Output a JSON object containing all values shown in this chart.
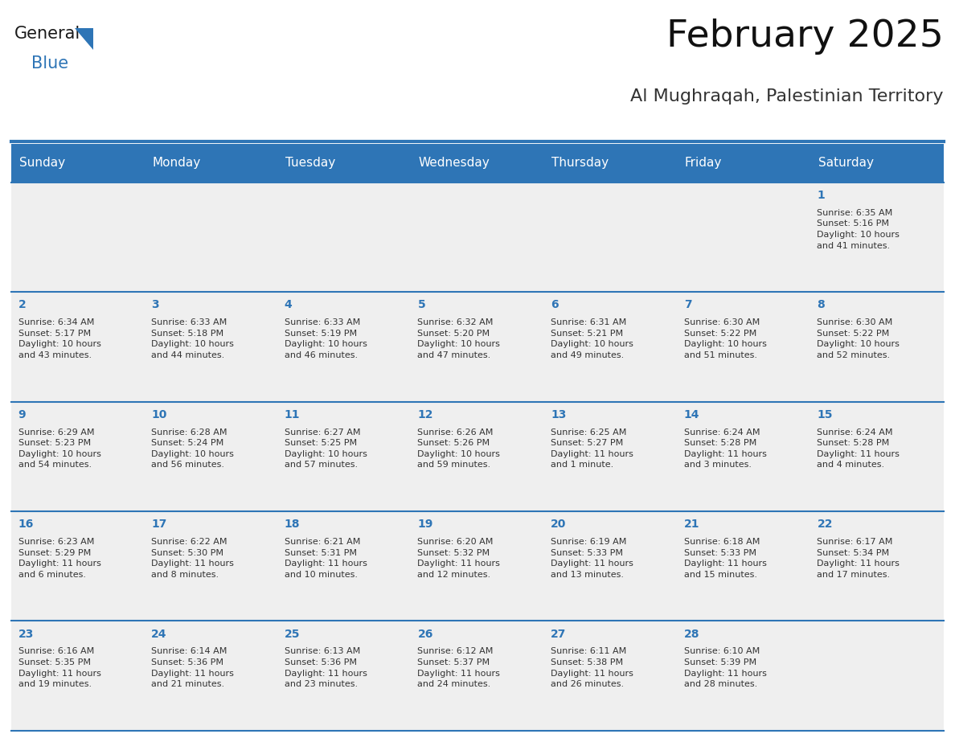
{
  "title": "February 2025",
  "subtitle": "Al Mughraqah, Palestinian Territory",
  "header_bg": "#2E75B6",
  "header_text_color": "#FFFFFF",
  "day_names": [
    "Sunday",
    "Monday",
    "Tuesday",
    "Wednesday",
    "Thursday",
    "Friday",
    "Saturday"
  ],
  "cell_bg": "#EFEFEF",
  "cell_border_color": "#2E75B6",
  "day_num_color": "#2E75B6",
  "day_num_fontsize": 10,
  "info_fontsize": 8,
  "title_fontsize": 34,
  "subtitle_fontsize": 16,
  "header_fontsize": 11,
  "weeks": [
    [
      {
        "day": null,
        "info": ""
      },
      {
        "day": null,
        "info": ""
      },
      {
        "day": null,
        "info": ""
      },
      {
        "day": null,
        "info": ""
      },
      {
        "day": null,
        "info": ""
      },
      {
        "day": null,
        "info": ""
      },
      {
        "day": 1,
        "info": "Sunrise: 6:35 AM\nSunset: 5:16 PM\nDaylight: 10 hours\nand 41 minutes."
      }
    ],
    [
      {
        "day": 2,
        "info": "Sunrise: 6:34 AM\nSunset: 5:17 PM\nDaylight: 10 hours\nand 43 minutes."
      },
      {
        "day": 3,
        "info": "Sunrise: 6:33 AM\nSunset: 5:18 PM\nDaylight: 10 hours\nand 44 minutes."
      },
      {
        "day": 4,
        "info": "Sunrise: 6:33 AM\nSunset: 5:19 PM\nDaylight: 10 hours\nand 46 minutes."
      },
      {
        "day": 5,
        "info": "Sunrise: 6:32 AM\nSunset: 5:20 PM\nDaylight: 10 hours\nand 47 minutes."
      },
      {
        "day": 6,
        "info": "Sunrise: 6:31 AM\nSunset: 5:21 PM\nDaylight: 10 hours\nand 49 minutes."
      },
      {
        "day": 7,
        "info": "Sunrise: 6:30 AM\nSunset: 5:22 PM\nDaylight: 10 hours\nand 51 minutes."
      },
      {
        "day": 8,
        "info": "Sunrise: 6:30 AM\nSunset: 5:22 PM\nDaylight: 10 hours\nand 52 minutes."
      }
    ],
    [
      {
        "day": 9,
        "info": "Sunrise: 6:29 AM\nSunset: 5:23 PM\nDaylight: 10 hours\nand 54 minutes."
      },
      {
        "day": 10,
        "info": "Sunrise: 6:28 AM\nSunset: 5:24 PM\nDaylight: 10 hours\nand 56 minutes."
      },
      {
        "day": 11,
        "info": "Sunrise: 6:27 AM\nSunset: 5:25 PM\nDaylight: 10 hours\nand 57 minutes."
      },
      {
        "day": 12,
        "info": "Sunrise: 6:26 AM\nSunset: 5:26 PM\nDaylight: 10 hours\nand 59 minutes."
      },
      {
        "day": 13,
        "info": "Sunrise: 6:25 AM\nSunset: 5:27 PM\nDaylight: 11 hours\nand 1 minute."
      },
      {
        "day": 14,
        "info": "Sunrise: 6:24 AM\nSunset: 5:28 PM\nDaylight: 11 hours\nand 3 minutes."
      },
      {
        "day": 15,
        "info": "Sunrise: 6:24 AM\nSunset: 5:28 PM\nDaylight: 11 hours\nand 4 minutes."
      }
    ],
    [
      {
        "day": 16,
        "info": "Sunrise: 6:23 AM\nSunset: 5:29 PM\nDaylight: 11 hours\nand 6 minutes."
      },
      {
        "day": 17,
        "info": "Sunrise: 6:22 AM\nSunset: 5:30 PM\nDaylight: 11 hours\nand 8 minutes."
      },
      {
        "day": 18,
        "info": "Sunrise: 6:21 AM\nSunset: 5:31 PM\nDaylight: 11 hours\nand 10 minutes."
      },
      {
        "day": 19,
        "info": "Sunrise: 6:20 AM\nSunset: 5:32 PM\nDaylight: 11 hours\nand 12 minutes."
      },
      {
        "day": 20,
        "info": "Sunrise: 6:19 AM\nSunset: 5:33 PM\nDaylight: 11 hours\nand 13 minutes."
      },
      {
        "day": 21,
        "info": "Sunrise: 6:18 AM\nSunset: 5:33 PM\nDaylight: 11 hours\nand 15 minutes."
      },
      {
        "day": 22,
        "info": "Sunrise: 6:17 AM\nSunset: 5:34 PM\nDaylight: 11 hours\nand 17 minutes."
      }
    ],
    [
      {
        "day": 23,
        "info": "Sunrise: 6:16 AM\nSunset: 5:35 PM\nDaylight: 11 hours\nand 19 minutes."
      },
      {
        "day": 24,
        "info": "Sunrise: 6:14 AM\nSunset: 5:36 PM\nDaylight: 11 hours\nand 21 minutes."
      },
      {
        "day": 25,
        "info": "Sunrise: 6:13 AM\nSunset: 5:36 PM\nDaylight: 11 hours\nand 23 minutes."
      },
      {
        "day": 26,
        "info": "Sunrise: 6:12 AM\nSunset: 5:37 PM\nDaylight: 11 hours\nand 24 minutes."
      },
      {
        "day": 27,
        "info": "Sunrise: 6:11 AM\nSunset: 5:38 PM\nDaylight: 11 hours\nand 26 minutes."
      },
      {
        "day": 28,
        "info": "Sunrise: 6:10 AM\nSunset: 5:39 PM\nDaylight: 11 hours\nand 28 minutes."
      },
      {
        "day": null,
        "info": ""
      }
    ]
  ],
  "logo_color_general": "#1a1a1a",
  "logo_color_blue": "#2E75B6",
  "logo_triangle_color": "#2E75B6",
  "fig_width": 11.88,
  "fig_height": 9.18,
  "fig_dpi": 100
}
